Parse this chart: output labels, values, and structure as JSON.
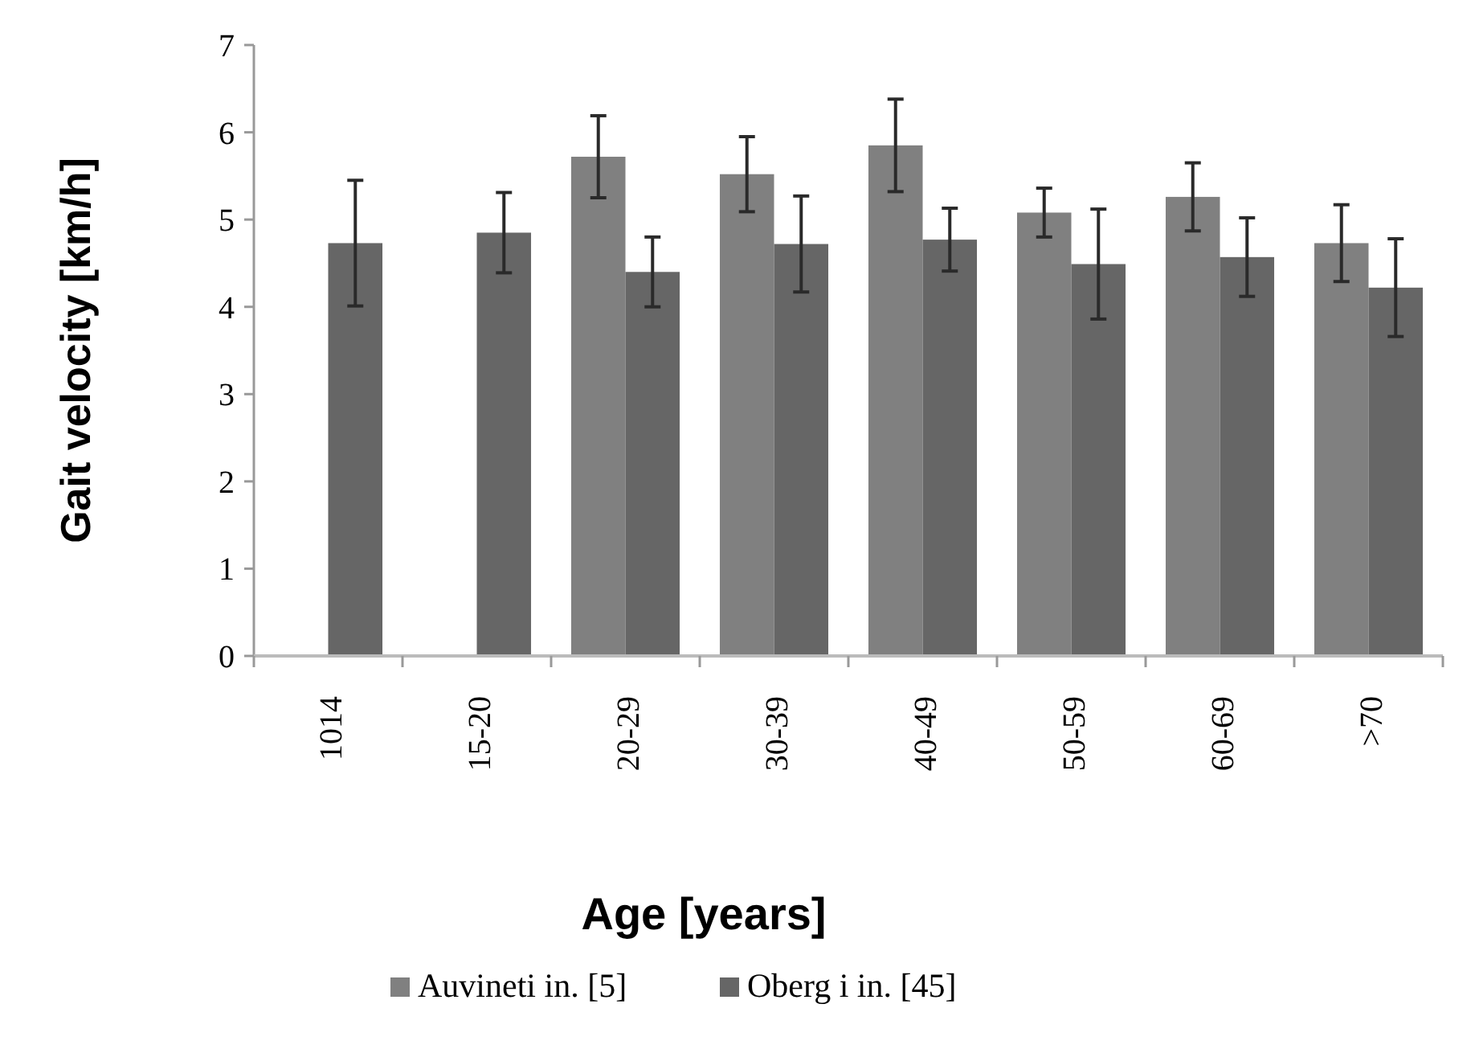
{
  "chart_data": {
    "type": "bar",
    "xlabel": "Age [years]",
    "ylabel": "Gait velocity [km/h]",
    "categories": [
      "1014",
      "15-20",
      "20-29",
      "30-39",
      "40-49",
      "50-59",
      "60-69",
      ">70"
    ],
    "series": [
      {
        "name": "Auvineti in. [5]",
        "color": "#808080",
        "values": [
          null,
          null,
          5.72,
          5.52,
          5.85,
          5.08,
          5.26,
          4.73
        ],
        "errors": [
          null,
          null,
          0.47,
          0.43,
          0.53,
          0.28,
          0.39,
          0.44
        ]
      },
      {
        "name": "Oberg i in. [45]",
        "color": "#666666",
        "values": [
          4.73,
          4.85,
          4.4,
          4.72,
          4.77,
          4.49,
          4.57,
          4.22
        ],
        "errors": [
          0.72,
          0.46,
          0.4,
          0.55,
          0.36,
          0.63,
          0.45,
          0.56
        ]
      }
    ],
    "ylim": [
      0,
      7
    ],
    "yticks": [
      0,
      1,
      2,
      3,
      4,
      5,
      6,
      7
    ],
    "grid": false,
    "legend": "bottom"
  }
}
